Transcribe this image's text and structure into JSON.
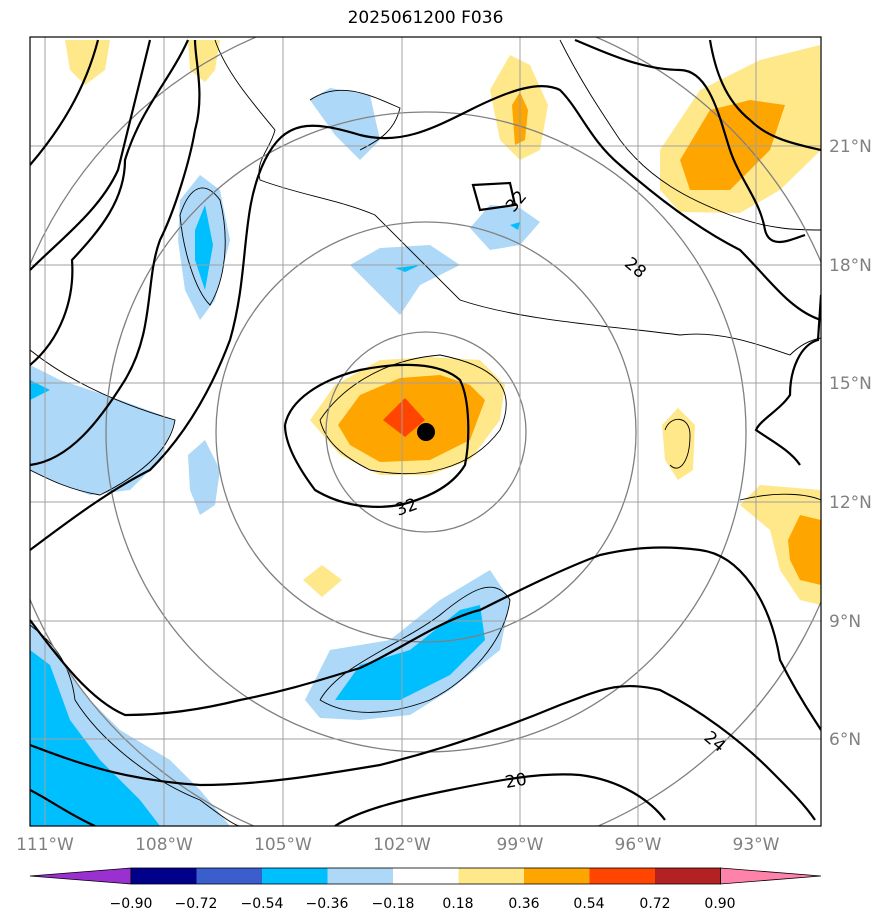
{
  "title": "2025061200 F036",
  "map": {
    "lon_ticks": [
      "111°W",
      "108°W",
      "105°W",
      "102°W",
      "99°W",
      "96°W",
      "93°W"
    ],
    "lat_ticks": [
      "21°N",
      "18°N",
      "15°N",
      "12°N",
      "9°N",
      "6°N"
    ],
    "contour_labels": [
      "32",
      "28",
      "32",
      "24",
      "20"
    ],
    "storm_center": "marker"
  },
  "colorbar": {
    "tick_labels": [
      "−0.90",
      "−0.72",
      "−0.54",
      "−0.36",
      "−0.18",
      "0.18",
      "0.36",
      "0.54",
      "0.72",
      "0.90"
    ],
    "colors": [
      "#9b30d0",
      "#00008b",
      "#3a5fcd",
      "#00bfff",
      "#add8f7",
      "#ffffff",
      "#ffe88a",
      "#ffa500",
      "#ff4500",
      "#b22222",
      "#ff82ab"
    ]
  }
}
